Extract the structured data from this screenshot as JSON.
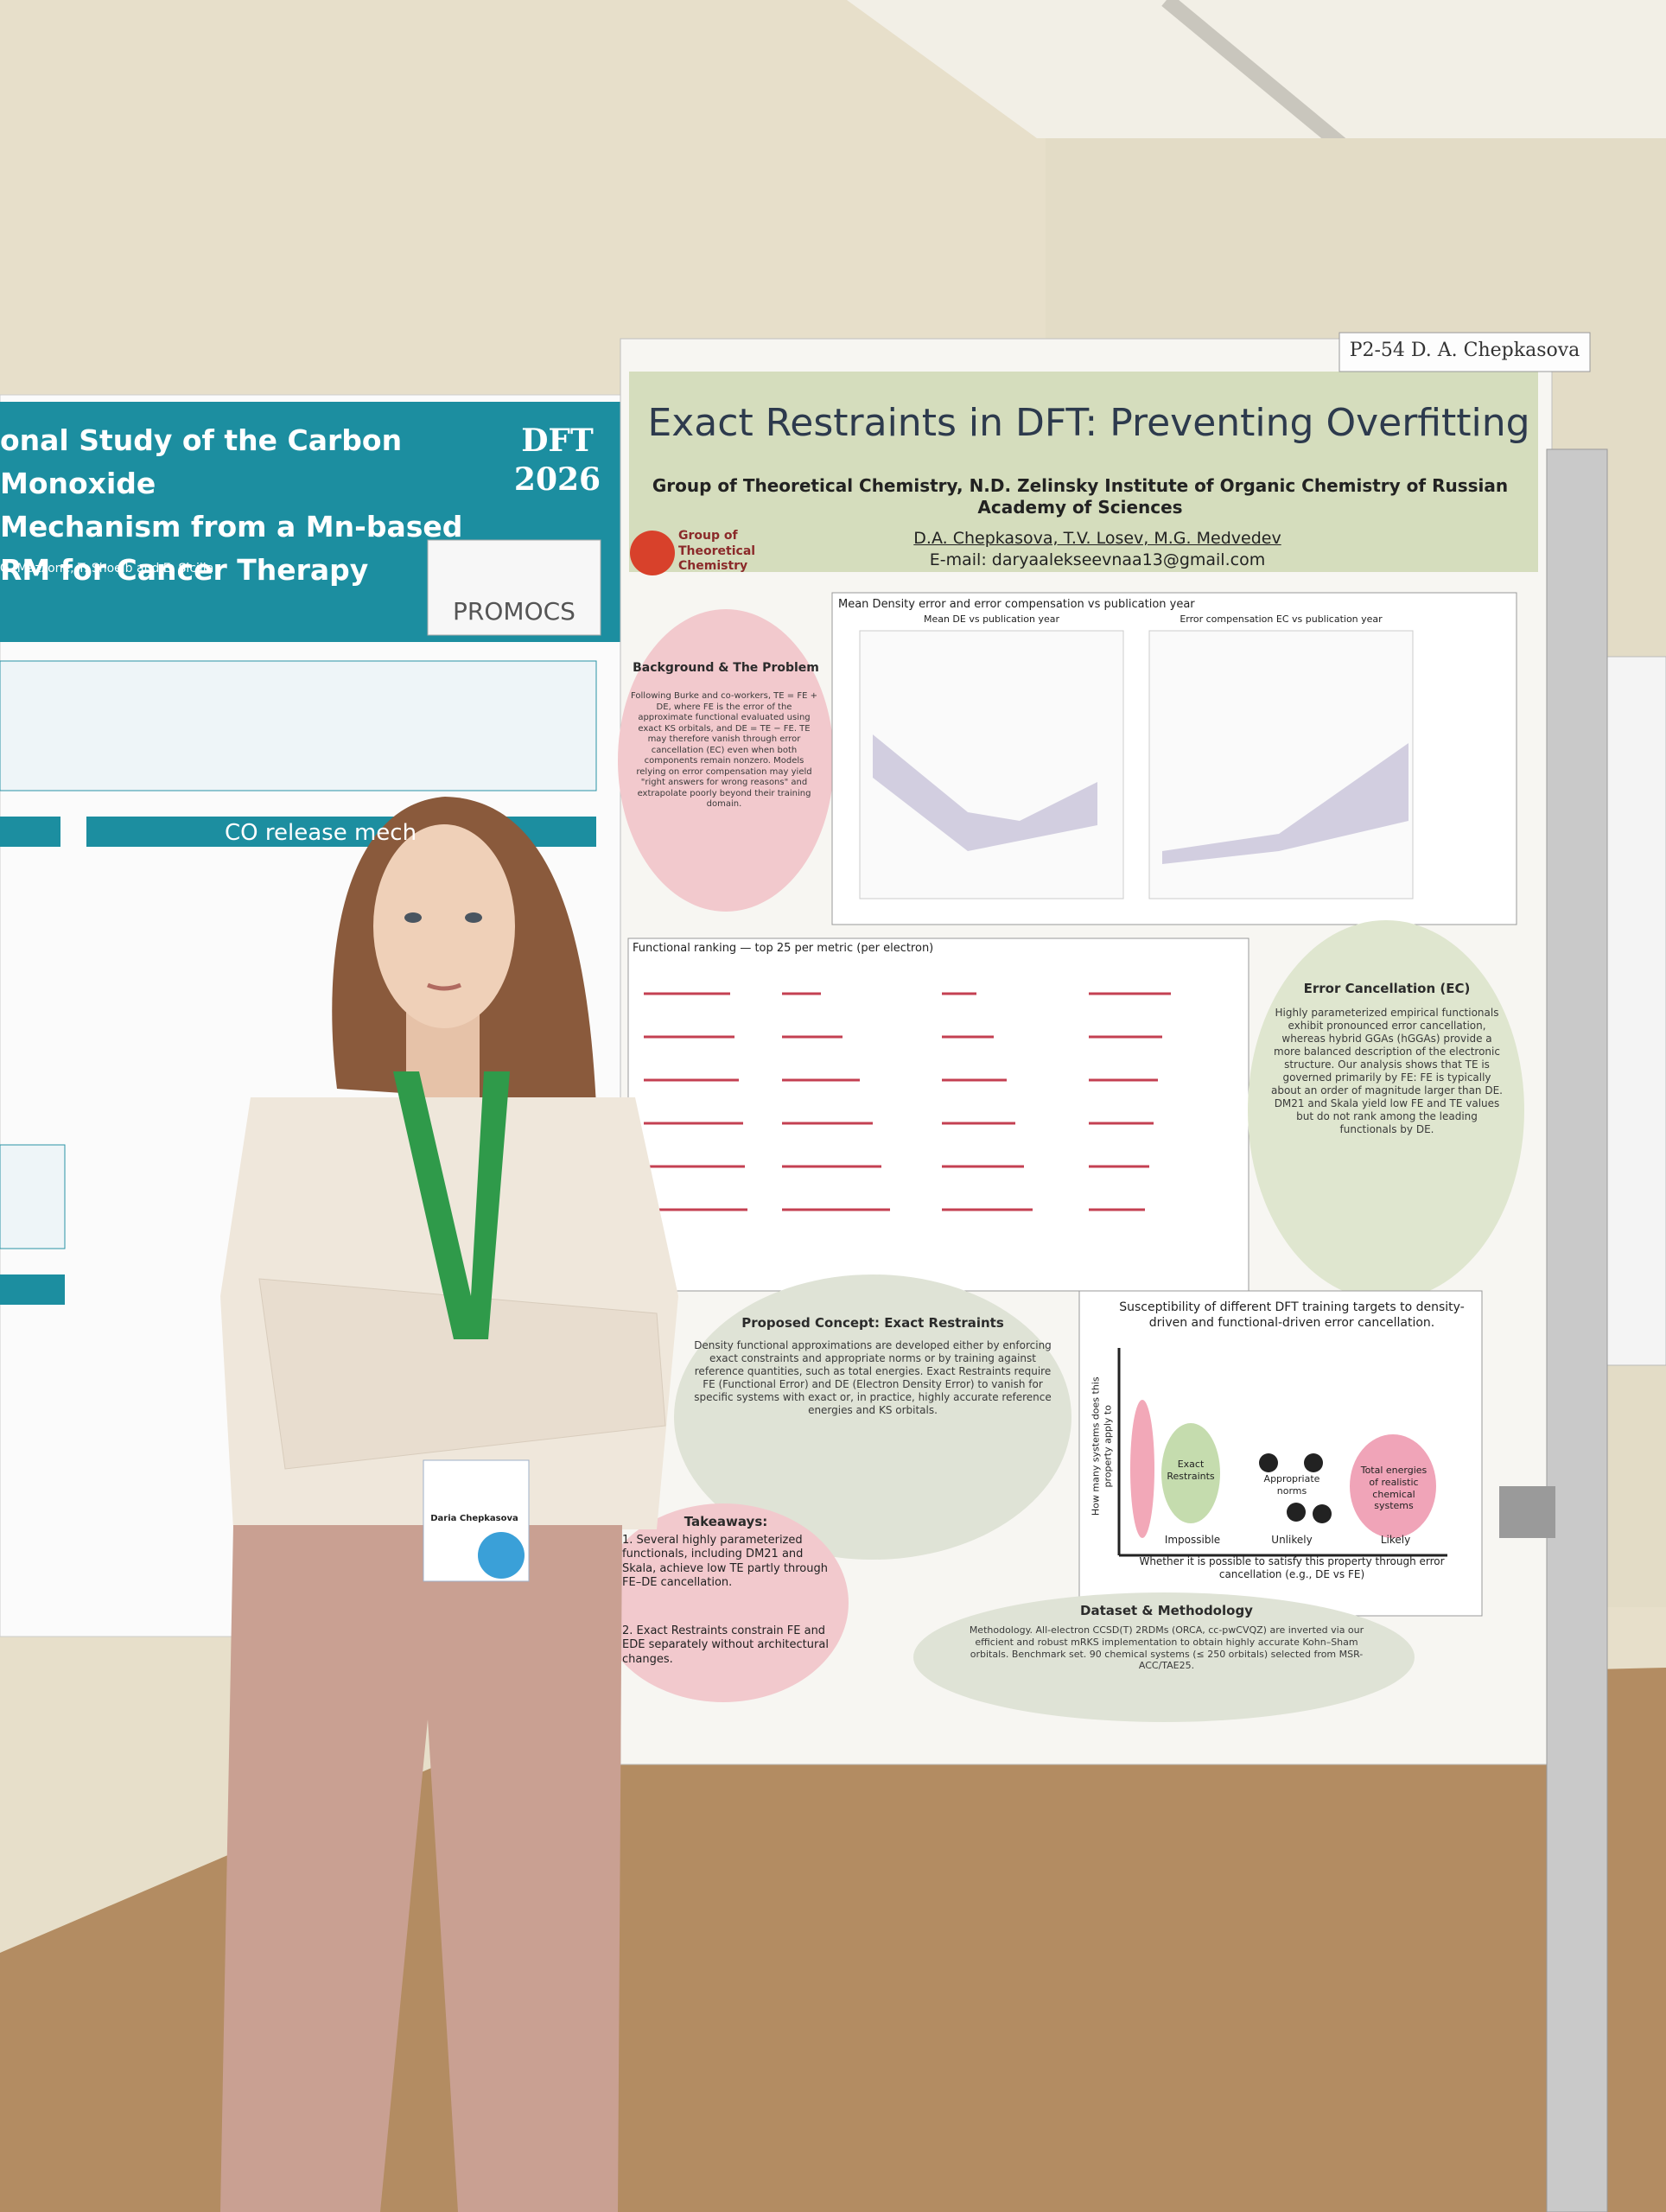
{
  "scene": {
    "label_tag": "P2-54 D. A. Chepkasova",
    "right_poster": {
      "title": "Exact Restraints in DFT: Preventing Overfitting",
      "affiliation": "Group of Theoretical Chemistry, N.D. Zelinsky Institute of Organic Chemistry of Russian Academy of Sciences",
      "group_logo": "Group of Theoretical Chemistry",
      "authors": "D.A. Chepkasova, T.V. Losev, M.G. Medvedev",
      "email": "E-mail: daryaalekseevnaa13@gmail.com",
      "background": {
        "heading": "Background & The Problem",
        "text": "Following Burke and co-workers, TE = FE + DE, where FE is the error of the approximate functional evaluated using exact KS orbitals, and DE = TE − FE. TE may therefore vanish through error cancellation (EC) even when both components remain nonzero. Models relying on error compensation may yield \"right answers for wrong reasons\" and extrapolate poorly beyond their training domain."
      },
      "chart_title": "Mean Density error and error compensation vs publication year",
      "chart_left": "Mean DE vs publication year",
      "chart_right": "Error compensation EC vs publication year",
      "ranking_title": "Functional ranking — top 25 per metric (per electron)",
      "error_cancellation": {
        "heading": "Error Cancellation (EC)",
        "text": "Highly parameterized empirical functionals exhibit pronounced error cancellation, whereas hybrid GGAs (hGGAs) provide a more balanced description of the electronic structure. Our analysis shows that TE is governed primarily by FE: FE is typically about an order of magnitude larger than DE. DM21 and Skala yield low FE and TE values but do not rank among the leading functionals by DE."
      },
      "concept": {
        "heading": "Proposed Concept: Exact Restraints",
        "text": "Density functional approximations are developed either by enforcing exact constraints and appropriate norms or by training against reference quantities, such as total energies. Exact Restraints require FE (Functional Error) and DE (Electron Density Error) to vanish for specific systems with exact or, in practice, highly accurate reference energies and KS orbitals."
      },
      "susceptibility": {
        "title": "Susceptibility of different DFT training targets to density-driven and functional-driven error cancellation.",
        "y_axis": "How many systems does this property apply to",
        "x_axis": "Whether it is possible to satisfy this property through error cancellation (e.g., DE vs FE)",
        "x_levels": [
          "Impossible",
          "Unlikely",
          "Likely"
        ],
        "items": [
          "Exact Restraints",
          "Appropriate norms",
          "Total energies of realistic chemical systems"
        ]
      },
      "takeaways": {
        "heading": "Takeaways:",
        "items": [
          "1. Several highly parameterized functionals, including DM21 and Skala, achieve low TE partly through FE–DE cancellation.",
          "2. Exact Restraints constrain FE and EDE separately without architectural changes."
        ]
      },
      "dataset": {
        "heading": "Dataset & Methodology",
        "text": "Methodology. All-electron CCSD(T) 2RDMs (ORCA, cc-pwCVQZ) are inverted via our efficient and robust mRKS implementation to obtain highly accurate Kohn–Sham orbitals. Benchmark set. 90 chemical systems (≤ 250 orbitals) selected from MSR-ACC/TAE25."
      }
    },
    "left_poster": {
      "title_lines": [
        "onal Study of the Carbon Monoxide",
        "Mechanism from a Mn-based",
        "RM for Cancer Therapy"
      ],
      "logo": "DFT 2026",
      "authors": "G. Mazzone, T. Shoeib and E. Sicilia",
      "section": "CO release mech",
      "partner": "PROMOCS"
    },
    "badge": "Daria Chepkasova"
  }
}
